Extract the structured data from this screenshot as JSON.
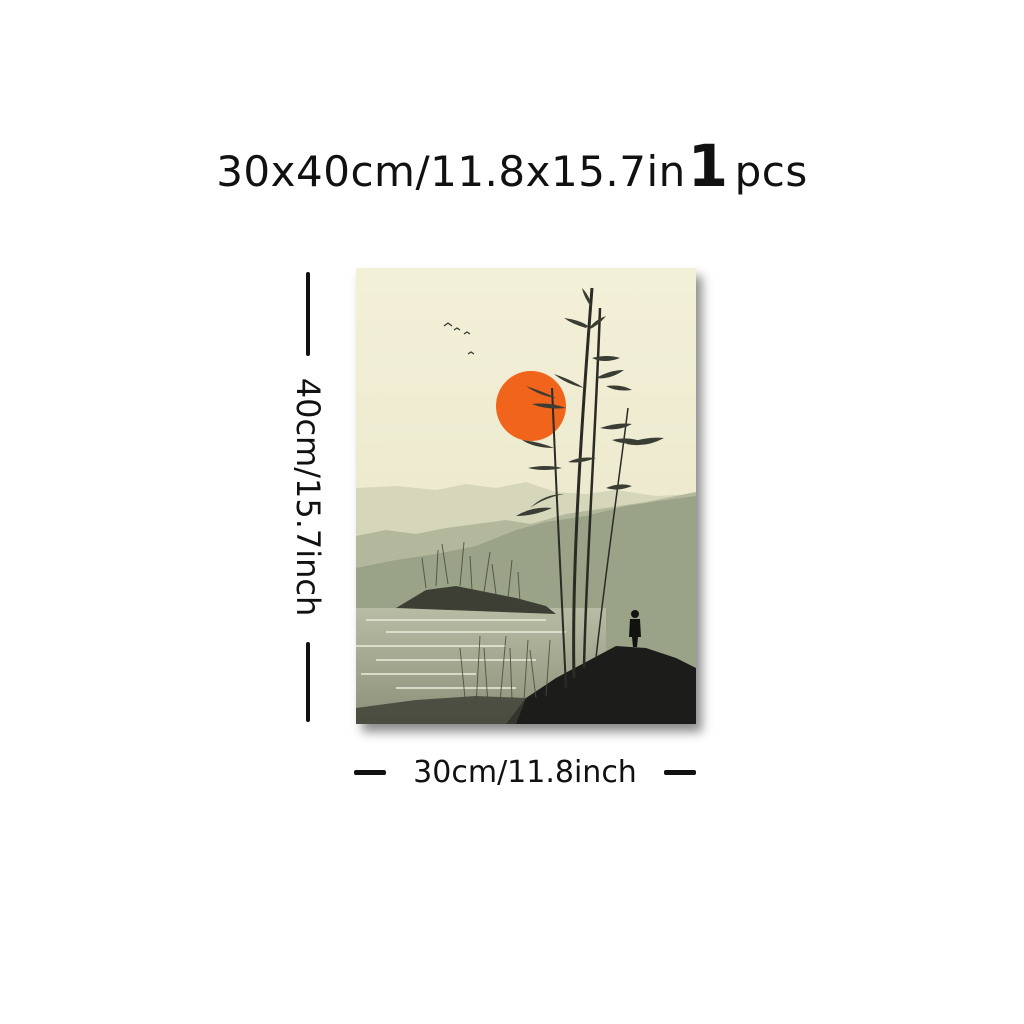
{
  "headline": {
    "size_text": "30x40cm/11.8x15.7in",
    "quantity": "1",
    "unit": "pcs"
  },
  "dimensions": {
    "height_label": "40cm/15.7inch",
    "width_label": "30cm/11.8inch"
  },
  "colors": {
    "background": "#ffffff",
    "paper": "#efecd2",
    "sun": "#f0641c",
    "mountain": "#9aa287",
    "ink": "#1c1c1a"
  }
}
